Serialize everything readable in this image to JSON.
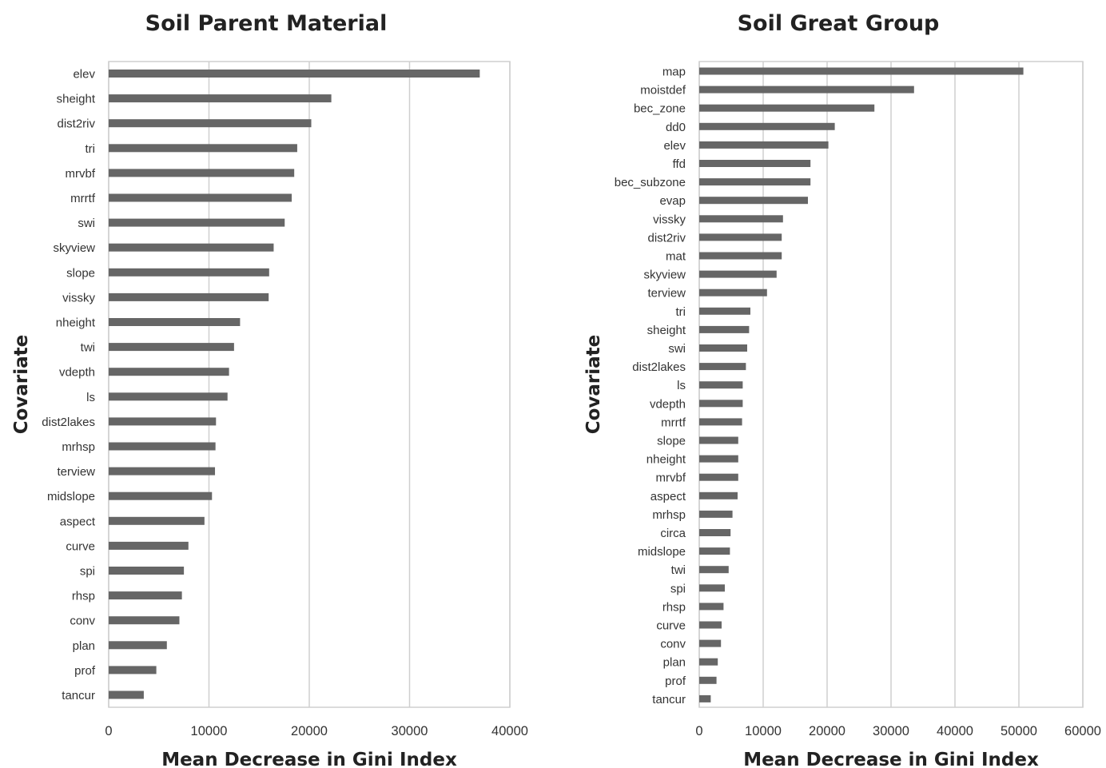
{
  "chart_data": [
    {
      "type": "bar",
      "orientation": "horizontal",
      "title": "Soil Parent Material",
      "xlabel": "Mean Decrease in Gini Index",
      "ylabel": "Covariate",
      "xlim": [
        0,
        40000
      ],
      "xticks": [
        "0",
        "10000",
        "20000",
        "30000",
        "40000"
      ],
      "grid": "vertical",
      "categories": [
        "elev",
        "sheight",
        "dist2riv",
        "tri",
        "mrvbf",
        "mrrtf",
        "swi",
        "skyview",
        "slope",
        "vissky",
        "nheight",
        "twi",
        "vdepth",
        "ls",
        "dist2lakes",
        "mrhsp",
        "terview",
        "midslope",
        "aspect",
        "curve",
        "spi",
        "rhsp",
        "conv",
        "plan",
        "prof",
        "tancur"
      ],
      "values": [
        37000,
        22200,
        20200,
        18800,
        18500,
        18250,
        17550,
        16450,
        16000,
        15950,
        13100,
        12500,
        12000,
        11850,
        10700,
        10650,
        10600,
        10300,
        9550,
        7950,
        7500,
        7300,
        7050,
        5800,
        4750,
        3500
      ]
    },
    {
      "type": "bar",
      "orientation": "horizontal",
      "title": "Soil Great Group",
      "xlabel": "Mean Decrease in Gini Index",
      "ylabel": "Covariate",
      "xlim": [
        0,
        60000
      ],
      "xticks": [
        "0",
        "10000",
        "20000",
        "30000",
        "40000",
        "50000",
        "60000"
      ],
      "grid": "vertical",
      "categories": [
        "map",
        "moistdef",
        "bec_zone",
        "dd0",
        "elev",
        "ffd",
        "bec_subzone",
        "evap",
        "vissky",
        "dist2riv",
        "mat",
        "skyview",
        "terview",
        "tri",
        "sheight",
        "swi",
        "dist2lakes",
        "ls",
        "vdepth",
        "mrrtf",
        "slope",
        "nheight",
        "mrvbf",
        "aspect",
        "mrhsp",
        "circa",
        "midslope",
        "twi",
        "spi",
        "rhsp",
        "curve",
        "conv",
        "plan",
        "prof",
        "tancur"
      ],
      "values": [
        50700,
        33600,
        27400,
        21200,
        20200,
        17400,
        17400,
        17000,
        13100,
        12900,
        12900,
        12100,
        10600,
        8000,
        7800,
        7500,
        7300,
        6800,
        6800,
        6700,
        6100,
        6100,
        6100,
        6000,
        5200,
        4900,
        4800,
        4600,
        4000,
        3800,
        3500,
        3400,
        2900,
        2700,
        1800
      ]
    }
  ]
}
